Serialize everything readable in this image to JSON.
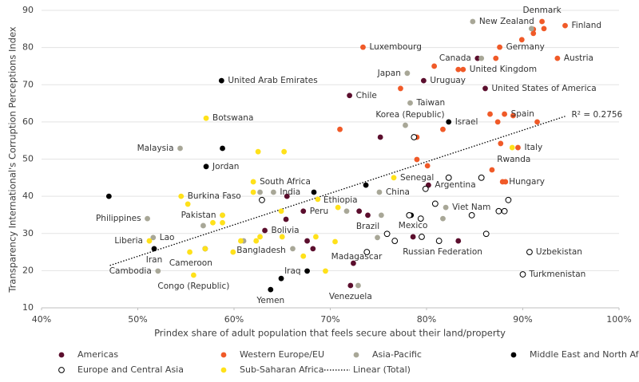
{
  "chart_data": {
    "type": "scatter",
    "xlabel": "Prindex share of adult population that feels secure about their land/property",
    "ylabel": "Transparency International's Corruption Perceptions Index",
    "xlim": [
      40,
      100
    ],
    "xticks": [
      {
        "value": 40,
        "label": "40%"
      },
      {
        "value": 50,
        "label": "50%"
      },
      {
        "value": 60,
        "label": "60%"
      },
      {
        "value": 70,
        "label": "70%"
      },
      {
        "value": 80,
        "label": "80%"
      },
      {
        "value": 90,
        "label": "90%"
      },
      {
        "value": 100,
        "label": "100%"
      }
    ],
    "ylim": [
      10,
      90
    ],
    "yticks": [
      10,
      20,
      30,
      40,
      50,
      60,
      70,
      80,
      90
    ],
    "grid": true,
    "legend": "bottom",
    "series": [
      {
        "name": "Americas",
        "color": "#5b0e2d",
        "x": [
          79.7,
          72.0,
          85.3,
          86.1,
          67.2,
          63.2,
          72.1,
          78.6,
          73.9,
          80.2,
          75.2,
          65.5,
          65.4,
          67.6,
          68.2,
          72.4,
          83.3,
          73.0
        ],
        "y": [
          71.1,
          67.1,
          77.1,
          69.0,
          36.0,
          30.8,
          16.0,
          29.1,
          34.9,
          43.0,
          55.9,
          40.0,
          33.8,
          28.0,
          25.9,
          22.0,
          28.0,
          36.0
        ],
        "labels": [
          "Uruguay",
          "Chile",
          "Canada",
          "United States of America",
          "Peru",
          "Bolivia",
          "Venezuela",
          "Mexico",
          "Brazil",
          "Argentina",
          null,
          null,
          null,
          null,
          null,
          null,
          null,
          null
        ]
      },
      {
        "name": "Western Europe/EU",
        "color": "#f05a28",
        "x": [
          92.0,
          94.4,
          87.6,
          93.6,
          73.4,
          83.8,
          88.1,
          89.5,
          87.9,
          91.1,
          91.1,
          92.2,
          89.9,
          87.2,
          80.8,
          83.3,
          89.0,
          86.6,
          87.4,
          91.5,
          87.7,
          81.7,
          71.0,
          79.0,
          79.0,
          80.1,
          86.8,
          88.2,
          77.3
        ],
        "y": [
          87.0,
          85.9,
          80.1,
          77.1,
          80.1,
          74.1,
          62.1,
          53.1,
          43.9,
          84.9,
          83.8,
          85.1,
          82.1,
          77.1,
          75.0,
          74.1,
          61.7,
          62.1,
          60.0,
          60.0,
          54.2,
          58.0,
          58.0,
          55.9,
          49.9,
          48.2,
          47.1,
          43.9,
          69.0
        ],
        "labels": [
          "Denmark",
          "Finland",
          "Germany",
          "Austria",
          "Luxembourg",
          "United Kingdom",
          "Spain",
          "Italy",
          "Hungary",
          null,
          null,
          null,
          null,
          null,
          null,
          null,
          null,
          null,
          null,
          null,
          null,
          null,
          null,
          null,
          null,
          null,
          null,
          null,
          null
        ]
      },
      {
        "name": "Asia-Pacific",
        "color": "#a8a797",
        "x": [
          84.8,
          78.0,
          78.3,
          77.8,
          75.1,
          64.1,
          58.8,
          61.0,
          54.4,
          51.0,
          51.6,
          52.1,
          82.0,
          90.9,
          85.7,
          71.7,
          75.3,
          74.9,
          81.7,
          72.9,
          66.1,
          56.8,
          62.7
        ],
        "y": [
          87.0,
          73.1,
          65.1,
          59.1,
          41.1,
          41.1,
          34.9,
          28.0,
          52.9,
          34.0,
          28.9,
          19.9,
          37.0,
          85.1,
          77.1,
          36.0,
          34.9,
          28.9,
          34.0,
          16.0,
          25.9,
          32.1,
          41.1
        ],
        "labels": [
          "New Zealand",
          "Japan",
          "Taiwan",
          "Korea (Republic)",
          "China",
          "India",
          "Pakistan",
          "Bangladesh",
          "Malaysia",
          "Philippines",
          "Lao",
          "Cambodia",
          "Viet Nam",
          null,
          null,
          null,
          null,
          null,
          null,
          null,
          null,
          null,
          null
        ]
      },
      {
        "name": "Middle East and North Africa",
        "color": "#000000",
        "x": [
          58.7,
          57.1,
          82.3,
          51.7,
          67.6,
          63.8,
          58.8,
          47.0,
          68.3,
          73.7,
          78.4,
          64.9,
          57.0
        ],
        "y": [
          71.1,
          48.0,
          60.0,
          25.9,
          19.9,
          14.9,
          52.9,
          40.0,
          41.1,
          43.0,
          34.9,
          17.9,
          25.9
        ],
        "labels": [
          "United Arab Emirates",
          "Jordan",
          "Israel",
          "Iran",
          "Iraq",
          "Yemen",
          null,
          null,
          null,
          null,
          null,
          null,
          null
        ]
      },
      {
        "name": "Europe and Central Asia",
        "color": "#ffffff",
        "edgecolor": "#000000",
        "x": [
          76.7,
          90.7,
          90.0,
          62.9,
          73.8,
          75.9,
          78.2,
          79.4,
          79.9,
          82.3,
          85.7,
          88.5,
          84.7,
          87.5,
          88.1,
          86.2,
          81.3,
          79.5,
          78.7,
          80.9
        ],
        "y": [
          28.0,
          25.0,
          19.0,
          39.0,
          25.0,
          29.9,
          34.9,
          34.0,
          42.0,
          45.0,
          45.0,
          39.0,
          34.9,
          36.0,
          36.0,
          29.9,
          28.0,
          29.1,
          55.9,
          38.0
        ],
        "labels": [
          "Russian Federation",
          "Uzbekistan",
          "Turkmenistan",
          null,
          null,
          null,
          null,
          null,
          null,
          null,
          null,
          null,
          null,
          null,
          null,
          null,
          null,
          null,
          null,
          null
        ]
      },
      {
        "name": "Sub-Saharan Africa",
        "color": "#ffe11a",
        "x": [
          57.1,
          62.0,
          54.5,
          68.7,
          76.6,
          88.9,
          51.2,
          57.0,
          55.8,
          70.5,
          62.5,
          65.2,
          62.0,
          58.8,
          58.8,
          59.9,
          60.7,
          62.3,
          62.7,
          65.0,
          68.5,
          70.8,
          67.2,
          69.5,
          55.2,
          57.8,
          55.4,
          64.9
        ],
        "y": [
          61.0,
          43.9,
          40.0,
          39.2,
          45.0,
          53.1,
          28.0,
          25.9,
          18.8,
          27.8,
          52.0,
          52.0,
          41.1,
          34.9,
          32.9,
          25.0,
          28.0,
          28.0,
          29.1,
          29.1,
          29.1,
          37.0,
          23.9,
          19.9,
          37.9,
          32.9,
          25.0,
          36.0
        ],
        "labels": [
          "Botswana",
          "South Africa",
          "Burkina Faso",
          "Ethiopia",
          "Senegal",
          "Rwanda",
          "Liberia",
          "Cameroon",
          "Congo (Republic)",
          "Madagascar",
          null,
          null,
          null,
          null,
          null,
          null,
          null,
          null,
          null,
          null,
          null,
          null,
          null,
          null,
          null,
          null,
          null,
          null
        ]
      }
    ],
    "trendline": {
      "name": "Linear (Total)",
      "color": "#000000",
      "linestyle": "dotted",
      "x": [
        47.1,
        94.4
      ],
      "y": [
        21.4,
        61.5
      ],
      "annotation": "R² = 0.2756"
    }
  }
}
